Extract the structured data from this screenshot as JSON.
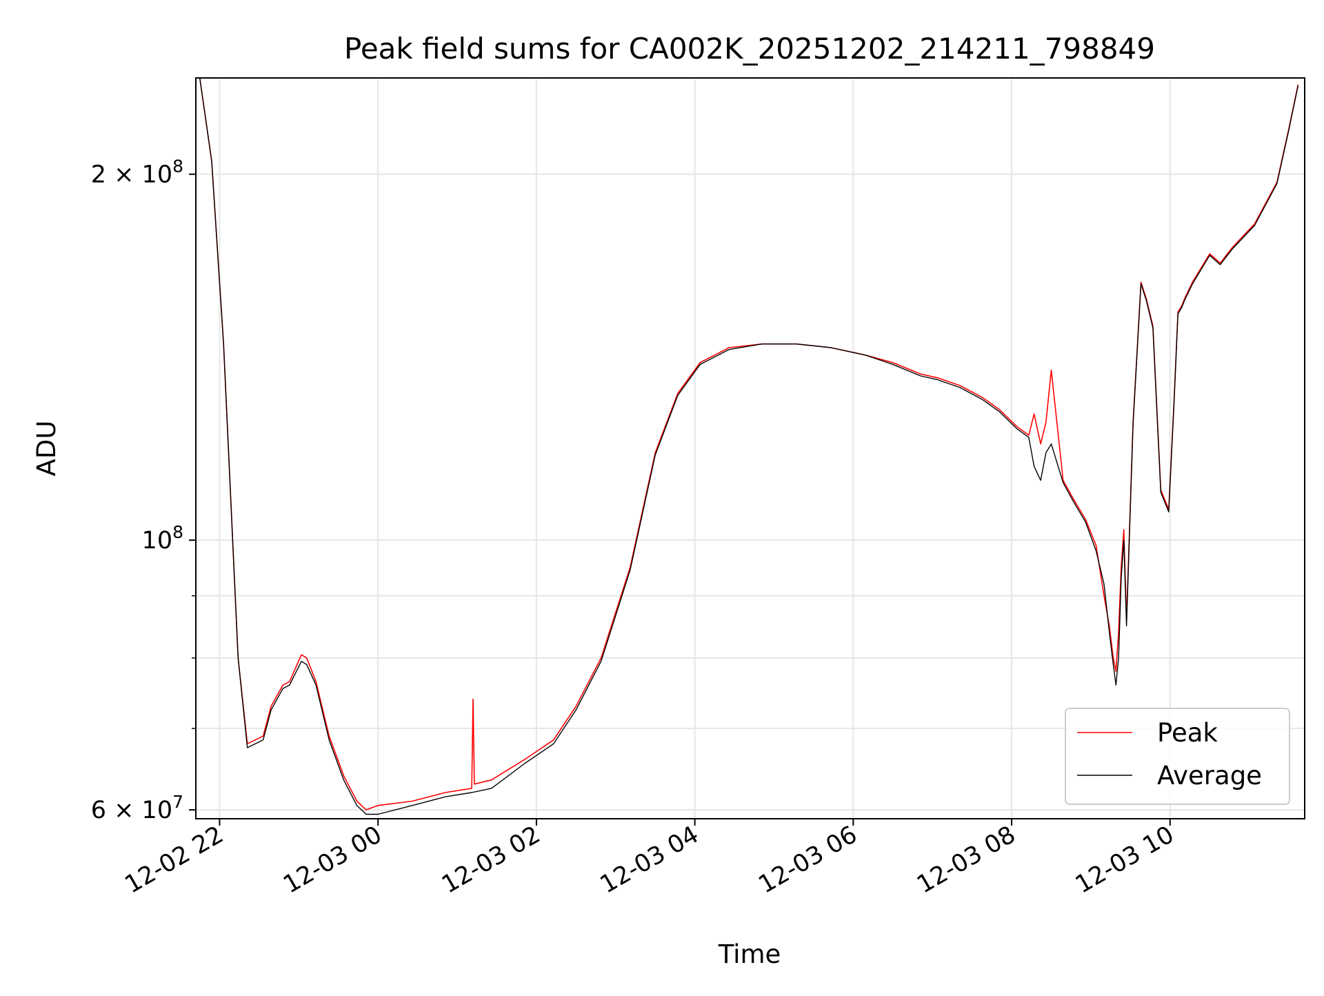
{
  "chart_data": {
    "type": "line",
    "title": "Peak field sums for CA002K_20251202_214211_798849",
    "xlabel": "Time",
    "ylabel": "ADU",
    "yscale": "log",
    "ylim": [
      59000000,
      240000000
    ],
    "xlim": [
      "2025-12-02 21:42",
      "2025-12-03 11:42"
    ],
    "grid": true,
    "legend_position": "lower right",
    "x_ticks": [
      "12-02 22",
      "12-03 00",
      "12-03 02",
      "12-03 04",
      "12-03 06",
      "12-03 08",
      "12-03 10"
    ],
    "x_tick_times": [
      "2025-12-02 22:00",
      "2025-12-03 00:00",
      "2025-12-03 02:00",
      "2025-12-03 04:00",
      "2025-12-03 06:00",
      "2025-12-03 08:00",
      "2025-12-03 10:00"
    ],
    "y_major_ticks": [
      {
        "value": 60000000,
        "label_base": "6 × 10",
        "label_exp": "7"
      },
      {
        "value": 100000000,
        "label_base": "10",
        "label_exp": "8"
      },
      {
        "value": 200000000,
        "label_base": "2 × 10",
        "label_exp": "8"
      }
    ],
    "y_minor_ticks": [
      70000000,
      80000000,
      90000000
    ],
    "series": [
      {
        "name": "Peak",
        "color": "#ff0000",
        "x": [
          "2025-12-02 21:45",
          "2025-12-02 21:54",
          "2025-12-02 22:03",
          "2025-12-02 22:14",
          "2025-12-02 22:21",
          "2025-12-02 22:33",
          "2025-12-02 22:39",
          "2025-12-02 22:48",
          "2025-12-02 22:53",
          "2025-12-02 23:02",
          "2025-12-02 23:06",
          "2025-12-02 23:13",
          "2025-12-02 23:23",
          "2025-12-02 23:34",
          "2025-12-02 23:44",
          "2025-12-02 23:51",
          "2025-12-03 00:00",
          "2025-12-03 00:26",
          "2025-12-03 00:51",
          "2025-12-03 01:11",
          "2025-12-03 01:12",
          "2025-12-03 01:13",
          "2025-12-03 01:26",
          "2025-12-03 01:51",
          "2025-12-03 02:13",
          "2025-12-03 02:30",
          "2025-12-03 02:49",
          "2025-12-03 03:11",
          "2025-12-03 03:30",
          "2025-12-03 03:47",
          "2025-12-03 04:04",
          "2025-12-03 04:26",
          "2025-12-03 04:51",
          "2025-12-03 05:17",
          "2025-12-03 05:43",
          "2025-12-03 06:09",
          "2025-12-03 06:30",
          "2025-12-03 06:51",
          "2025-12-03 07:04",
          "2025-12-03 07:21",
          "2025-12-03 07:38",
          "2025-12-03 07:51",
          "2025-12-03 08:04",
          "2025-12-03 08:13",
          "2025-12-03 08:17",
          "2025-12-03 08:22",
          "2025-12-03 08:26",
          "2025-12-03 08:30",
          "2025-12-03 08:39",
          "2025-12-03 08:47",
          "2025-12-03 08:56",
          "2025-12-03 09:04",
          "2025-12-03 09:10",
          "2025-12-03 09:14",
          "2025-12-03 09:17",
          "2025-12-03 09:19",
          "2025-12-03 09:21",
          "2025-12-03 09:23",
          "2025-12-03 09:25",
          "2025-12-03 09:27",
          "2025-12-03 09:32",
          "2025-12-03 09:38",
          "2025-12-03 09:42",
          "2025-12-03 09:47",
          "2025-12-03 09:53",
          "2025-12-03 09:59",
          "2025-12-03 10:03",
          "2025-12-03 10:06",
          "2025-12-03 10:09",
          "2025-12-03 10:11",
          "2025-12-03 10:17",
          "2025-12-03 10:30",
          "2025-12-03 10:38",
          "2025-12-03 10:47",
          "2025-12-03 11:04",
          "2025-12-03 11:21",
          "2025-12-03 11:30",
          "2025-12-03 11:37"
        ],
        "values": [
          240000000,
          205000000,
          145000000,
          80000000,
          68000000,
          69000000,
          73000000,
          76000000,
          76500000,
          80500000,
          80000000,
          76500000,
          69000000,
          64000000,
          61000000,
          60000000,
          60500000,
          61000000,
          62000000,
          62500000,
          74000000,
          63000000,
          63500000,
          66000000,
          68500000,
          73000000,
          80000000,
          95000000,
          118000000,
          132000000,
          140000000,
          144000000,
          145000000,
          145000000,
          144000000,
          142000000,
          140000000,
          137000000,
          136000000,
          134000000,
          131000000,
          128000000,
          124000000,
          122000000,
          127000000,
          120000000,
          125000000,
          138000000,
          112000000,
          108000000,
          104000000,
          99000000,
          90000000,
          85000000,
          80000000,
          78000000,
          84000000,
          95000000,
          102000000,
          86000000,
          125000000,
          163000000,
          158000000,
          150000000,
          110000000,
          106000000,
          130000000,
          154000000,
          156000000,
          158000000,
          163000000,
          172000000,
          169000000,
          174000000,
          182000000,
          197000000,
          218000000,
          237000000
        ]
      },
      {
        "name": "Average",
        "color": "#000000",
        "x": [
          "2025-12-02 21:45",
          "2025-12-02 21:54",
          "2025-12-02 22:03",
          "2025-12-02 22:14",
          "2025-12-02 22:21",
          "2025-12-02 22:33",
          "2025-12-02 22:39",
          "2025-12-02 22:48",
          "2025-12-02 22:53",
          "2025-12-02 23:02",
          "2025-12-02 23:06",
          "2025-12-02 23:13",
          "2025-12-02 23:23",
          "2025-12-02 23:34",
          "2025-12-02 23:44",
          "2025-12-02 23:51",
          "2025-12-03 00:00",
          "2025-12-03 00:26",
          "2025-12-03 00:51",
          "2025-12-03 01:11",
          "2025-12-03 01:26",
          "2025-12-03 01:51",
          "2025-12-03 02:13",
          "2025-12-03 02:30",
          "2025-12-03 02:49",
          "2025-12-03 03:11",
          "2025-12-03 03:30",
          "2025-12-03 03:47",
          "2025-12-03 04:04",
          "2025-12-03 04:26",
          "2025-12-03 04:51",
          "2025-12-03 05:17",
          "2025-12-03 05:43",
          "2025-12-03 06:09",
          "2025-12-03 06:30",
          "2025-12-03 06:51",
          "2025-12-03 07:04",
          "2025-12-03 07:21",
          "2025-12-03 07:38",
          "2025-12-03 07:51",
          "2025-12-03 08:04",
          "2025-12-03 08:13",
          "2025-12-03 08:17",
          "2025-12-03 08:22",
          "2025-12-03 08:26",
          "2025-12-03 08:30",
          "2025-12-03 08:39",
          "2025-12-03 08:47",
          "2025-12-03 08:56",
          "2025-12-03 09:04",
          "2025-12-03 09:10",
          "2025-12-03 09:14",
          "2025-12-03 09:17",
          "2025-12-03 09:19",
          "2025-12-03 09:21",
          "2025-12-03 09:23",
          "2025-12-03 09:25",
          "2025-12-03 09:27",
          "2025-12-03 09:32",
          "2025-12-03 09:38",
          "2025-12-03 09:42",
          "2025-12-03 09:47",
          "2025-12-03 09:53",
          "2025-12-03 09:59",
          "2025-12-03 10:03",
          "2025-12-03 10:06",
          "2025-12-03 10:09",
          "2025-12-03 10:11",
          "2025-12-03 10:17",
          "2025-12-03 10:30",
          "2025-12-03 10:38",
          "2025-12-03 10:47",
          "2025-12-03 11:04",
          "2025-12-03 11:21",
          "2025-12-03 11:30",
          "2025-12-03 11:37"
        ],
        "values": [
          240000000,
          205000000,
          145000000,
          80000000,
          67500000,
          68500000,
          72500000,
          75500000,
          76000000,
          79500000,
          79000000,
          76000000,
          68500000,
          63500000,
          60500000,
          59500000,
          59500000,
          60500000,
          61500000,
          62000000,
          62500000,
          65500000,
          68000000,
          72500000,
          79500000,
          94500000,
          117500000,
          131500000,
          139500000,
          143500000,
          145000000,
          145000000,
          144000000,
          142000000,
          139500000,
          136500000,
          135500000,
          133500000,
          130500000,
          127500000,
          123500000,
          121500000,
          115000000,
          112000000,
          118000000,
          120000000,
          111500000,
          107500000,
          103500000,
          98000000,
          92000000,
          84000000,
          79000000,
          76000000,
          80000000,
          93000000,
          100000000,
          85000000,
          124500000,
          162500000,
          157500000,
          149500000,
          109500000,
          105500000,
          129500000,
          153500000,
          155500000,
          157500000,
          162500000,
          171500000,
          168500000,
          173500000,
          181500000,
          196500000,
          217500000,
          236500000
        ]
      }
    ]
  }
}
